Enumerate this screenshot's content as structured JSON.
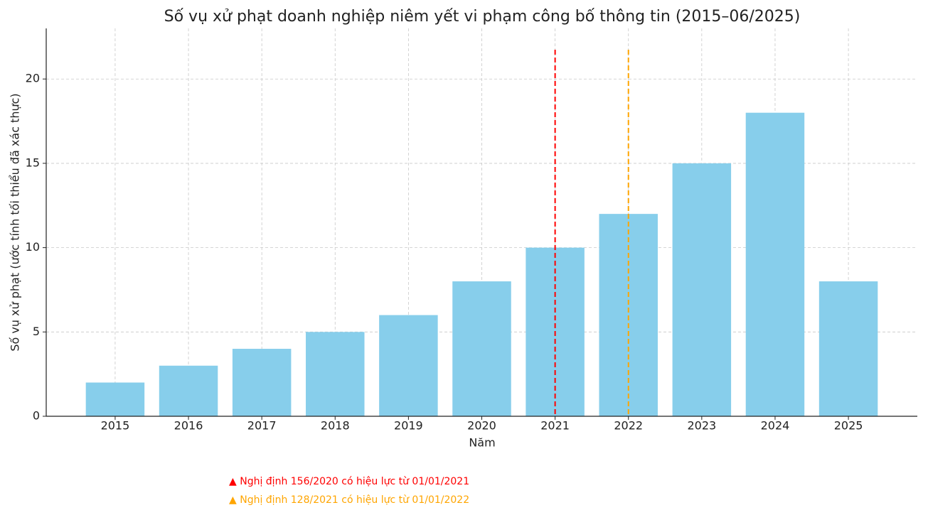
{
  "chart_data": {
    "type": "bar",
    "title": "Số vụ xử phạt doanh nghiệp niêm yết vi phạm công bố thông tin (2015–06/2025)",
    "x_label": "Năm",
    "y_label": "Số vụ xử phạt (ước tính tối thiểu đã xác thực)",
    "categories": [
      "2015",
      "2016",
      "2017",
      "2018",
      "2019",
      "2020",
      "2021",
      "2022",
      "2023",
      "2024",
      "2025"
    ],
    "values": [
      2,
      3,
      4,
      5,
      6,
      8,
      10,
      12,
      15,
      18,
      8
    ],
    "color": "#87ceeb",
    "ylim": [
      0,
      23
    ],
    "yticks": [
      0,
      5,
      10,
      15,
      20
    ],
    "grid": true,
    "annotations": [
      {
        "at": "2021",
        "color": "#ff0000",
        "text": "▲ Nghị định 156/2020 có hiệu lực từ 01/01/2021"
      },
      {
        "at": "2022",
        "color": "#ffa500",
        "text": "▲ Nghị định 128/2021 có hiệu lực từ 01/01/2022"
      }
    ]
  }
}
